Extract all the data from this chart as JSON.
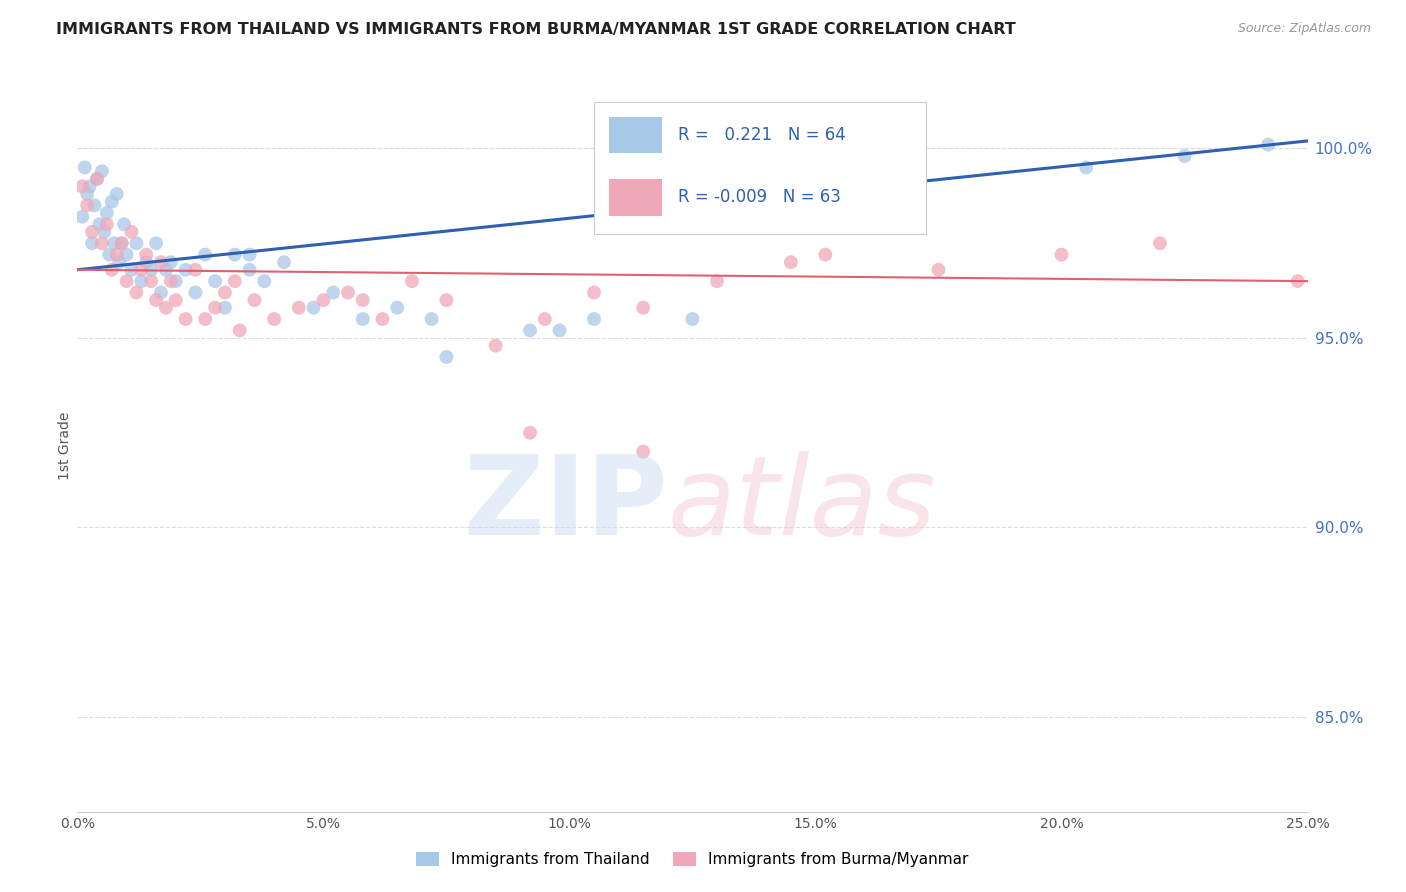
{
  "title": "IMMIGRANTS FROM THAILAND VS IMMIGRANTS FROM BURMA/MYANMAR 1ST GRADE CORRELATION CHART",
  "source": "Source: ZipAtlas.com",
  "ylabel": "1st Grade",
  "x_min": 0.0,
  "x_max": 25.0,
  "y_min": 82.5,
  "y_max": 101.8,
  "y_ticks": [
    85.0,
    90.0,
    95.0,
    100.0
  ],
  "y_tick_labels": [
    "85.0%",
    "90.0%",
    "95.0%",
    "100.0%"
  ],
  "legend_blue_r": "R =   0.221",
  "legend_blue_n": "N = 64",
  "legend_pink_r": "R = -0.009",
  "legend_pink_n": "N = 63",
  "legend_label_blue": "Immigrants from Thailand",
  "legend_label_pink": "Immigrants from Burma/Myanmar",
  "blue_color": "#a8c8e8",
  "pink_color": "#f0a8b8",
  "blue_line_color": "#3060b0",
  "pink_line_color": "#e06070",
  "title_color": "#222222",
  "source_color": "#999999",
  "axis_label_color": "#555555",
  "right_axis_color": "#4472c4",
  "grid_color": "#dddddd",
  "blue_scatter_x": [
    0.1,
    0.15,
    0.2,
    0.25,
    0.3,
    0.35,
    0.4,
    0.45,
    0.5,
    0.55,
    0.6,
    0.65,
    0.7,
    0.75,
    0.8,
    0.85,
    0.9,
    0.95,
    1.0,
    1.1,
    1.2,
    1.3,
    1.4,
    1.5,
    1.6,
    1.7,
    1.8,
    1.9,
    2.0,
    2.2,
    2.4,
    2.6,
    2.8,
    3.0,
    3.2,
    3.5,
    3.8,
    4.2,
    4.8,
    5.2,
    5.8,
    6.5,
    7.5,
    9.2,
    10.5,
    13.5,
    16.5,
    20.5,
    22.5,
    24.2
  ],
  "blue_scatter_y": [
    98.2,
    99.5,
    98.8,
    99.0,
    97.5,
    98.5,
    99.2,
    98.0,
    99.4,
    97.8,
    98.3,
    97.2,
    98.6,
    97.5,
    98.8,
    97.0,
    97.5,
    98.0,
    97.2,
    96.8,
    97.5,
    96.5,
    97.0,
    96.8,
    97.5,
    96.2,
    96.8,
    97.0,
    96.5,
    96.8,
    96.2,
    97.2,
    96.5,
    95.8,
    97.2,
    96.8,
    96.5,
    97.0,
    95.8,
    96.2,
    95.5,
    95.8,
    94.5,
    95.2,
    95.5,
    98.0,
    99.2,
    99.5,
    99.8,
    100.1
  ],
  "pink_scatter_x": [
    0.1,
    0.2,
    0.3,
    0.4,
    0.5,
    0.6,
    0.7,
    0.8,
    0.9,
    1.0,
    1.1,
    1.2,
    1.3,
    1.4,
    1.5,
    1.6,
    1.7,
    1.8,
    1.9,
    2.0,
    2.2,
    2.4,
    2.6,
    2.8,
    3.0,
    3.3,
    3.6,
    4.0,
    4.5,
    5.0,
    5.5,
    6.2,
    6.8,
    7.5,
    8.5,
    9.5,
    10.5,
    11.5,
    13.0,
    14.5,
    17.5,
    20.0,
    24.8
  ],
  "pink_scatter_y": [
    99.0,
    98.5,
    97.8,
    99.2,
    97.5,
    98.0,
    96.8,
    97.2,
    97.5,
    96.5,
    97.8,
    96.2,
    96.8,
    97.2,
    96.5,
    96.0,
    97.0,
    95.8,
    96.5,
    96.0,
    95.5,
    96.8,
    95.5,
    95.8,
    96.2,
    95.2,
    96.0,
    95.5,
    95.8,
    96.0,
    96.2,
    95.5,
    96.5,
    96.0,
    94.8,
    95.5,
    96.2,
    95.8,
    96.5,
    97.0,
    96.8,
    97.2,
    96.5
  ],
  "blue_line_x0": 0.0,
  "blue_line_x1": 25.0,
  "blue_line_y0": 96.8,
  "blue_line_y1": 100.2,
  "pink_line_x0": 0.0,
  "pink_line_x1": 25.0,
  "pink_line_y0": 96.8,
  "pink_line_y1": 96.5,
  "extra_blue_x": [
    3.5,
    7.2,
    9.8,
    12.5,
    15.8
  ],
  "extra_blue_y": [
    97.2,
    95.5,
    95.2,
    95.5,
    99.5
  ],
  "extra_pink_x": [
    3.2,
    5.8,
    9.2,
    11.5,
    15.2,
    22.0
  ],
  "extra_pink_y": [
    96.5,
    96.0,
    92.5,
    92.0,
    97.2,
    97.5
  ]
}
